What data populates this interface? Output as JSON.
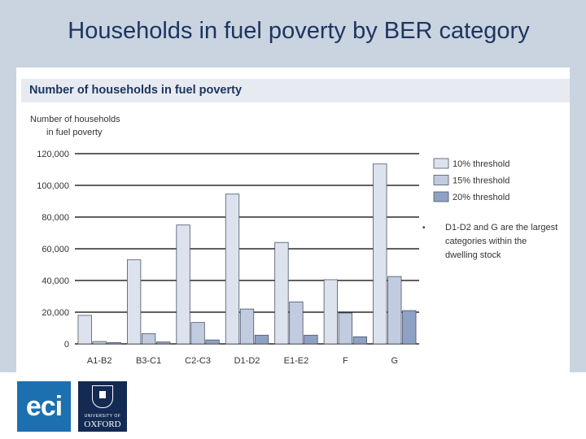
{
  "slide": {
    "title": "Households in fuel poverty by BER category"
  },
  "logos": {
    "eci_text": "eci",
    "oxford_line1": "UNIVERSITY OF",
    "oxford_line2": "OXFORD"
  },
  "chart_data": {
    "type": "bar",
    "title": "Number of households in fuel poverty",
    "ylabel_lines": [
      "Number of households",
      "in fuel poverty"
    ],
    "xlabel": "",
    "categories": [
      "A1-B2",
      "B3-C1",
      "C2-C3",
      "D1-D2",
      "E1-E2",
      "F",
      "G"
    ],
    "series": [
      {
        "name": "10% threshold",
        "color": "#dde3ee",
        "values": [
          18000,
          53000,
          75000,
          94500,
          64000,
          40500,
          113500
        ]
      },
      {
        "name": "15% threshold",
        "color": "#c2cce0",
        "values": [
          1500,
          6500,
          13500,
          22000,
          26500,
          19500,
          42500
        ]
      },
      {
        "name": "20% threshold",
        "color": "#8fa1c4",
        "values": [
          800,
          1200,
          2500,
          5500,
          5500,
          4500,
          21000
        ]
      }
    ],
    "ylim": [
      0,
      120000
    ],
    "yticks": [
      0,
      20000,
      40000,
      60000,
      80000,
      100000,
      120000
    ],
    "ytick_labels": [
      "0",
      "20,000",
      "40,000",
      "60,000",
      "80,000",
      "100,000",
      "120,000"
    ],
    "grid": true,
    "legend_position": "right",
    "note": "D1-D2 and G are the largest categories within the dwelling stock",
    "note_lines": [
      "D1-D2 and G are the largest",
      "categories within the",
      "dwelling stock"
    ],
    "bullet": "•"
  }
}
